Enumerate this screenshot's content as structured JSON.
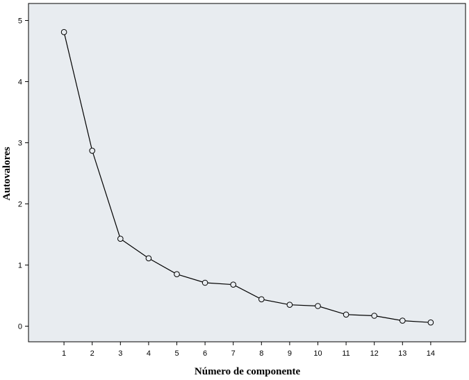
{
  "chart_data": {
    "type": "line",
    "xlabel": "Número de componente",
    "ylabel": "Autovalores",
    "x": [
      1,
      2,
      3,
      4,
      5,
      6,
      7,
      8,
      9,
      10,
      11,
      12,
      13,
      14
    ],
    "series": [
      {
        "values": [
          4.81,
          2.87,
          1.43,
          1.11,
          0.85,
          0.71,
          0.68,
          0.44,
          0.35,
          0.33,
          0.19,
          0.17,
          0.09,
          0.06
        ]
      }
    ],
    "xlim": [
      0,
      15
    ],
    "ylim": [
      -0.25,
      5.1
    ],
    "xticks": [
      "1",
      "2",
      "3",
      "4",
      "5",
      "6",
      "7",
      "8",
      "9",
      "10",
      "11",
      "12",
      "13",
      "14"
    ],
    "yticks": [
      "0",
      "1",
      "2",
      "3",
      "4",
      "5"
    ],
    "grid": false,
    "marker": "open-circle",
    "colors": {
      "plot_background": "#e8ecf0",
      "line": "#000000",
      "axis": "#000000"
    }
  }
}
